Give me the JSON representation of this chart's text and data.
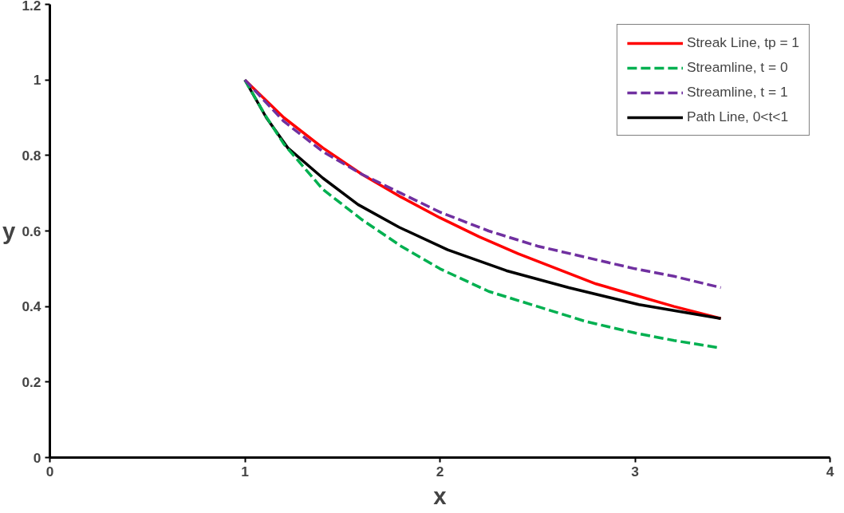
{
  "chart_data": {
    "type": "line",
    "xlabel": "x",
    "ylabel": "y",
    "xlim": [
      0,
      4
    ],
    "ylim": [
      0,
      1.2
    ],
    "xticks": [
      0,
      1,
      2,
      3,
      4
    ],
    "yticks": [
      0,
      0.2,
      0.4,
      0.6,
      0.8,
      1,
      1.2
    ],
    "grid": false,
    "legend": "top right",
    "marker": "none",
    "series": [
      {
        "name": "Streak Line, tp = 1",
        "color": "#ff0000",
        "line_style": "solid",
        "x": [
          1,
          1.2,
          1.4,
          1.6,
          1.8,
          2,
          2.2,
          2.4,
          2.6,
          2.8,
          3,
          3.2,
          3.44
        ],
        "values": [
          1,
          0.9,
          0.82,
          0.75,
          0.69,
          0.635,
          0.585,
          0.54,
          0.5,
          0.46,
          0.43,
          0.4,
          0.368
        ]
      },
      {
        "name": "Streamline, t = 0",
        "color": "#00b050",
        "line_style": "dashed",
        "x": [
          1,
          1.1,
          1.2,
          1.4,
          1.6,
          1.8,
          2,
          2.25,
          2.5,
          2.75,
          3,
          3.2,
          3.44
        ],
        "values": [
          1,
          0.91,
          0.83,
          0.71,
          0.63,
          0.56,
          0.5,
          0.44,
          0.4,
          0.36,
          0.33,
          0.31,
          0.29
        ]
      },
      {
        "name": "Streamline, t = 1",
        "color": "#7030a0",
        "line_style": "dashed",
        "x": [
          1,
          1.2,
          1.4,
          1.6,
          1.8,
          2,
          2.25,
          2.5,
          2.75,
          3,
          3.2,
          3.44
        ],
        "values": [
          1,
          0.89,
          0.81,
          0.75,
          0.7,
          0.65,
          0.6,
          0.56,
          0.53,
          0.5,
          0.48,
          0.45
        ]
      },
      {
        "name": "Path Line, 0<t<1",
        "color": "#000000",
        "line_style": "solid",
        "x": [
          1,
          1.11,
          1.22,
          1.4,
          1.58,
          1.79,
          2.04,
          2.34,
          2.66,
          3.02,
          3.44
        ],
        "values": [
          1,
          0.9,
          0.82,
          0.74,
          0.67,
          0.61,
          0.55,
          0.495,
          0.45,
          0.405,
          0.368
        ]
      }
    ]
  }
}
